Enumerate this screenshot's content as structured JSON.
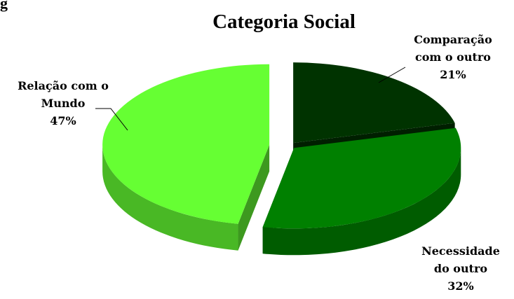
{
  "stray_text": "g",
  "chart_data": {
    "type": "pie",
    "title": "Categoria Social",
    "three_d": true,
    "exploded": true,
    "legend": "none",
    "slices": [
      {
        "name": "Comparação com o outro",
        "label_lines": [
          "Comparação",
          "com o outro"
        ],
        "percent_label": "21%",
        "value": 21,
        "color": "#003300"
      },
      {
        "name": "Necessidade do outro",
        "label_lines": [
          "Necessidade",
          "do outro"
        ],
        "percent_label": "32%",
        "value": 32,
        "color": "#008000"
      },
      {
        "name": "Relação com o Mundo",
        "label_lines": [
          "Relação com o",
          "Mundo"
        ],
        "percent_label": "47%",
        "value": 47,
        "color": "#66ff33"
      }
    ]
  }
}
